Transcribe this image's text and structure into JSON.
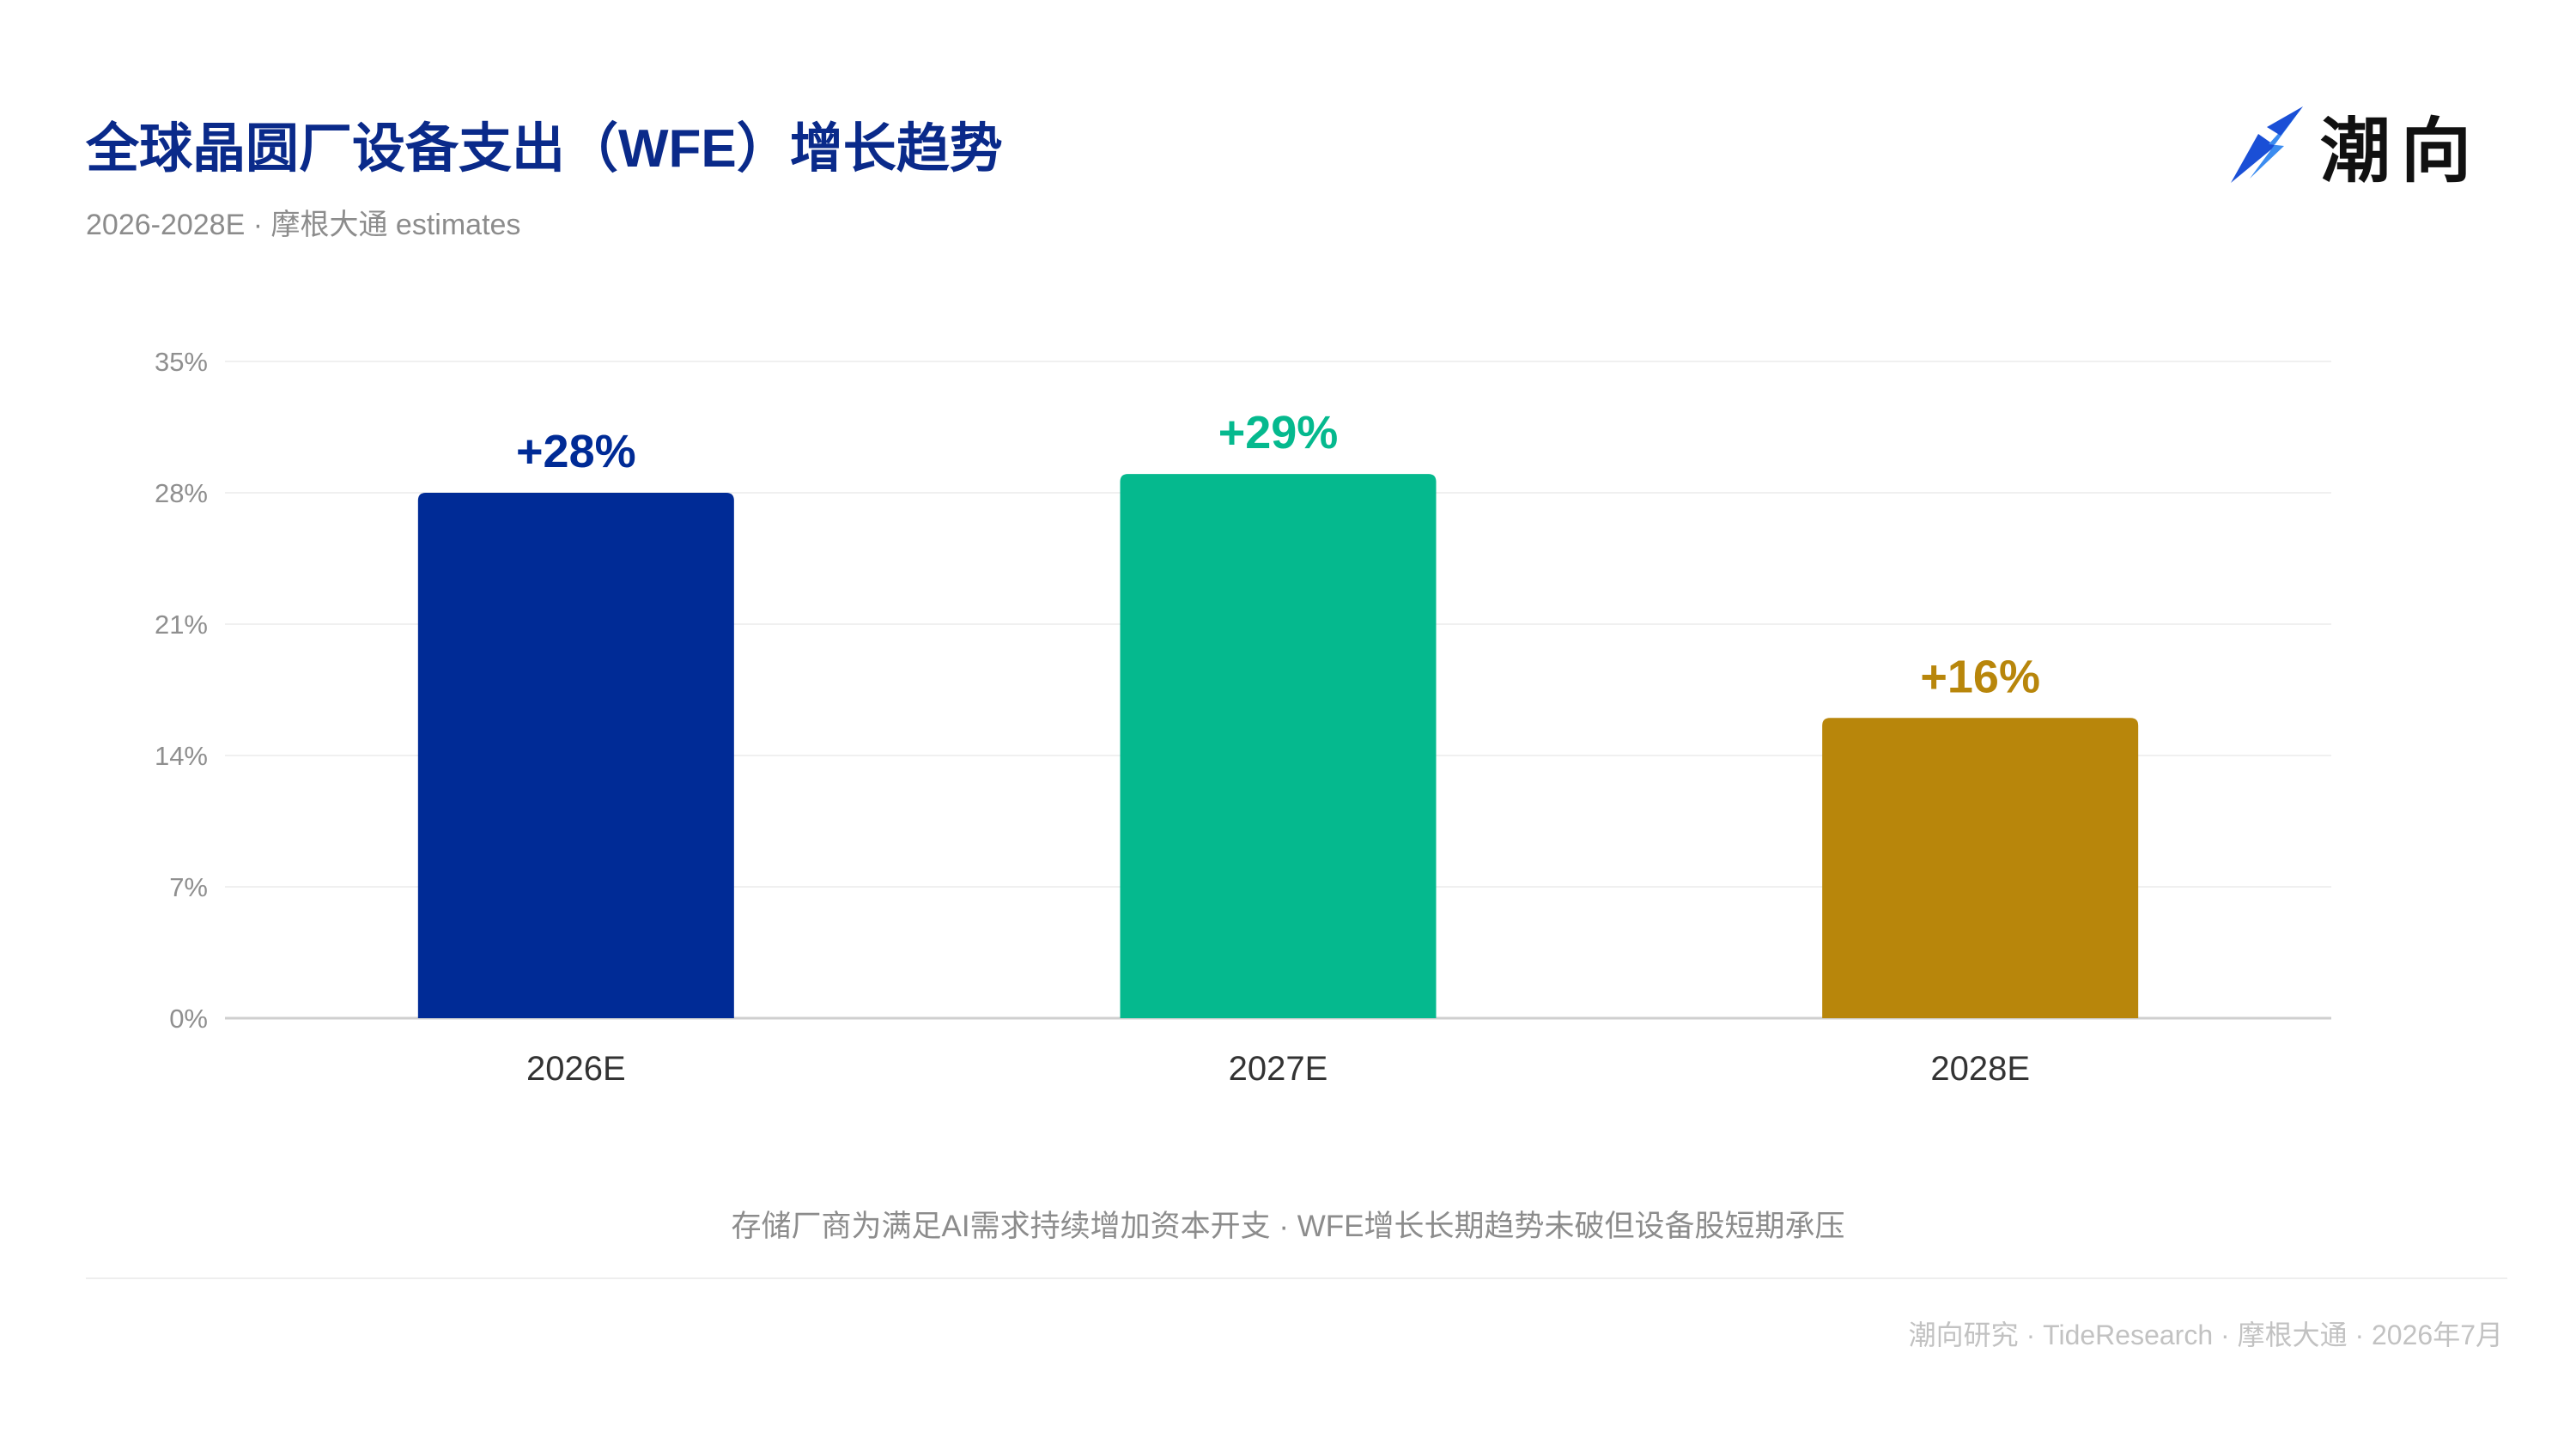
{
  "header": {
    "title": "全球晶圆厂设备支出（WFE）增长趋势",
    "subtitle": "2026-2028E · 摩根大通 estimates"
  },
  "logo": {
    "text": "潮向",
    "icon": "arrow-logo-icon",
    "colors": [
      "#1a4fd6",
      "#3b8cf0"
    ]
  },
  "chart_data": {
    "type": "bar",
    "categories": [
      "2026E",
      "2027E",
      "2028E"
    ],
    "values": [
      28,
      29,
      16
    ],
    "data_labels": [
      "+28%",
      "+29%",
      "+16%"
    ],
    "colors": [
      "#002b96",
      "#05b98e",
      "#b8860b"
    ],
    "y_ticks": [
      "0%",
      "7%",
      "14%",
      "21%",
      "28%",
      "35%"
    ],
    "y_tick_values": [
      0,
      7,
      14,
      21,
      28,
      35
    ],
    "ylim": [
      0,
      35
    ],
    "grid": true,
    "legend": "none"
  },
  "caption": "存储厂商为满足AI需求持续增加资本开支 · WFE增长长期趋势未破但设备股短期承压",
  "footer": "潮向研究 · TideResearch · 摩根大通 · 2026年7月"
}
